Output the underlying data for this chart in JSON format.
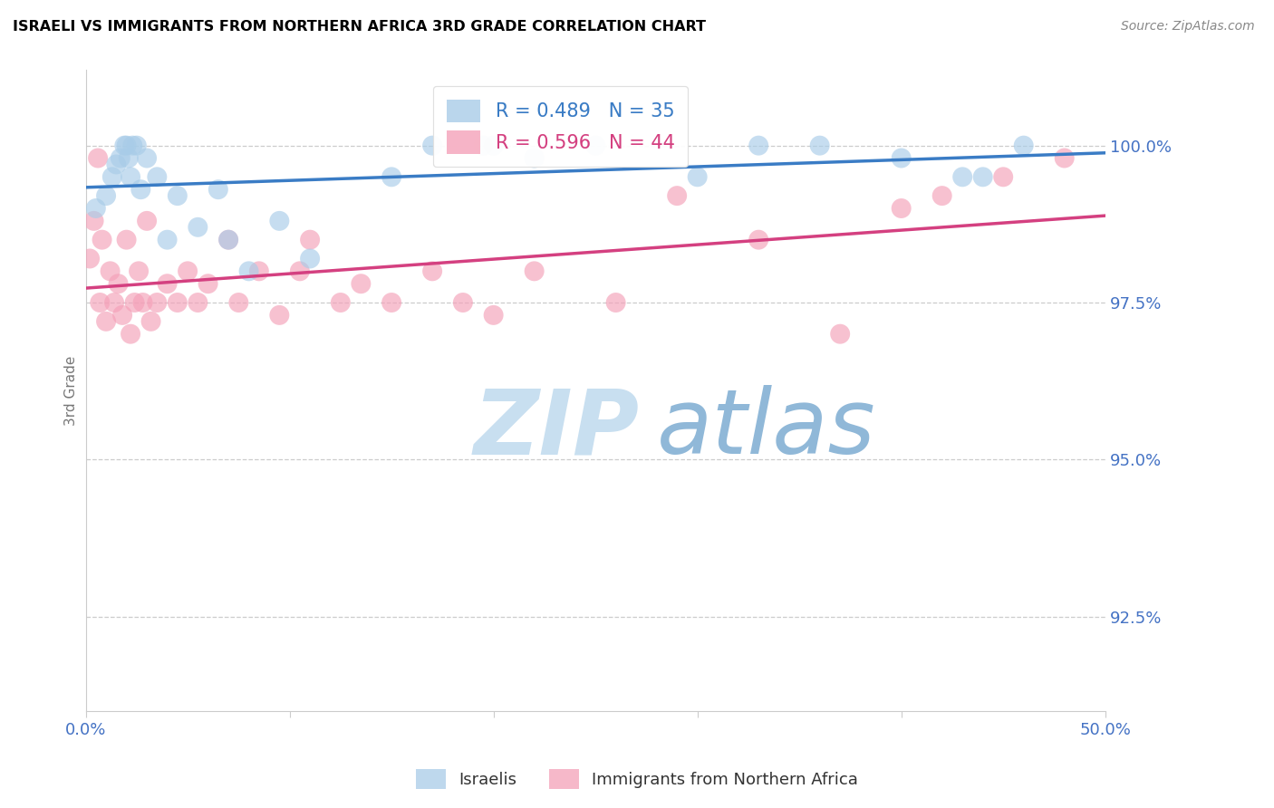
{
  "title": "ISRAELI VS IMMIGRANTS FROM NORTHERN AFRICA 3RD GRADE CORRELATION CHART",
  "source": "Source: ZipAtlas.com",
  "ylabel": "3rd Grade",
  "xlim": [
    0.0,
    50.0
  ],
  "ylim": [
    91.0,
    101.2
  ],
  "yticks": [
    92.5,
    95.0,
    97.5,
    100.0
  ],
  "ytick_labels": [
    "92.5%",
    "95.0%",
    "97.5%",
    "100.0%"
  ],
  "xticks": [
    0.0,
    10.0,
    20.0,
    30.0,
    40.0,
    50.0
  ],
  "xtick_labels": [
    "0.0%",
    "",
    "",
    "",
    "",
    "50.0%"
  ],
  "blue_R": 0.489,
  "blue_N": 35,
  "pink_R": 0.596,
  "pink_N": 44,
  "blue_color": "#a8cce8",
  "pink_color": "#f4a0b8",
  "blue_line_color": "#3a7cc5",
  "pink_line_color": "#d44080",
  "axis_color": "#4472c4",
  "watermark_zip_color": "#c8dff0",
  "watermark_atlas_color": "#90b8d8",
  "blue_scatter_x": [
    0.5,
    1.0,
    1.3,
    1.5,
    1.7,
    1.9,
    2.0,
    2.1,
    2.2,
    2.3,
    2.5,
    2.7,
    3.0,
    3.5,
    4.0,
    4.5,
    5.5,
    6.5,
    7.0,
    8.0,
    9.5,
    11.0,
    15.0,
    17.0,
    19.5,
    20.0,
    22.0,
    25.0,
    30.0,
    33.0,
    36.0,
    40.0,
    43.0,
    44.0,
    46.0
  ],
  "blue_scatter_y": [
    99.0,
    99.2,
    99.5,
    99.7,
    99.8,
    100.0,
    100.0,
    99.8,
    99.5,
    100.0,
    100.0,
    99.3,
    99.8,
    99.5,
    98.5,
    99.2,
    98.7,
    99.3,
    98.5,
    98.0,
    98.8,
    98.2,
    99.5,
    100.0,
    100.0,
    100.0,
    99.8,
    100.0,
    99.5,
    100.0,
    100.0,
    99.8,
    99.5,
    99.5,
    100.0
  ],
  "pink_scatter_x": [
    0.2,
    0.4,
    0.6,
    0.7,
    0.8,
    1.0,
    1.2,
    1.4,
    1.6,
    1.8,
    2.0,
    2.2,
    2.4,
    2.6,
    2.8,
    3.0,
    3.2,
    3.5,
    4.0,
    4.5,
    5.0,
    5.5,
    6.0,
    7.0,
    7.5,
    8.5,
    9.5,
    10.5,
    11.0,
    12.5,
    13.5,
    15.0,
    17.0,
    18.5,
    20.0,
    22.0,
    26.0,
    29.0,
    33.0,
    37.0,
    40.0,
    42.0,
    45.0,
    48.0
  ],
  "pink_scatter_y": [
    98.2,
    98.8,
    99.8,
    97.5,
    98.5,
    97.2,
    98.0,
    97.5,
    97.8,
    97.3,
    98.5,
    97.0,
    97.5,
    98.0,
    97.5,
    98.8,
    97.2,
    97.5,
    97.8,
    97.5,
    98.0,
    97.5,
    97.8,
    98.5,
    97.5,
    98.0,
    97.3,
    98.0,
    98.5,
    97.5,
    97.8,
    97.5,
    98.0,
    97.5,
    97.3,
    98.0,
    97.5,
    99.2,
    98.5,
    97.0,
    99.0,
    99.2,
    99.5,
    99.8
  ]
}
